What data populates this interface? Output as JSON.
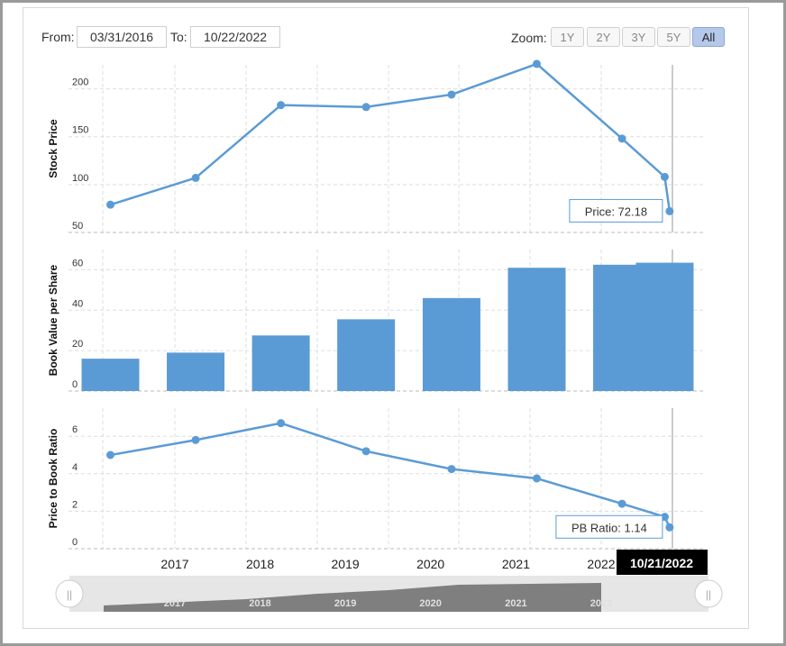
{
  "controls": {
    "from_label": "From:",
    "from_value": "03/31/2016",
    "to_label": "To:",
    "to_value": "10/22/2022",
    "zoom_label": "Zoom:",
    "zoom_options": [
      "1Y",
      "2Y",
      "3Y",
      "5Y",
      "All"
    ],
    "zoom_selected": "All"
  },
  "colors": {
    "series": "#5b9bd5",
    "grid": "#dddddd",
    "navigator_fill": "#7f7f7f",
    "navigator_bg": "#e6e6e6",
    "active_zoom": "#b5c8ea"
  },
  "chart_data": [
    {
      "type": "line",
      "ylabel": "Stock Price",
      "ylim": [
        50,
        225
      ],
      "yticks": [
        50,
        100,
        150,
        200
      ],
      "x": [
        "2016-03-31",
        "2017-03-31",
        "2018-03-31",
        "2019-03-31",
        "2020-03-31",
        "2021-03-31",
        "2022-03-31",
        "2022-09-30",
        "2022-10-21"
      ],
      "values": [
        79,
        107,
        183,
        181,
        194,
        226,
        148,
        108,
        72.18
      ],
      "tooltip": "Price: 72.18"
    },
    {
      "type": "bar",
      "ylabel": "Book Value per Share",
      "ylim": [
        0,
        70
      ],
      "yticks": [
        0,
        20,
        40,
        60
      ],
      "x": [
        "2016-03-31",
        "2017-03-31",
        "2018-03-31",
        "2019-03-31",
        "2020-03-31",
        "2021-03-31",
        "2022-03-31",
        "2022-09-30"
      ],
      "values": [
        16,
        19,
        27.5,
        35.5,
        46,
        61,
        62.5,
        63.5
      ]
    },
    {
      "type": "line",
      "ylabel": "Price to Book Ratio",
      "ylim": [
        0,
        7.5
      ],
      "yticks": [
        0,
        2,
        4,
        6
      ],
      "x": [
        "2016-03-31",
        "2017-03-31",
        "2018-03-31",
        "2019-03-31",
        "2020-03-31",
        "2021-03-31",
        "2022-03-31",
        "2022-09-30",
        "2022-10-21"
      ],
      "values": [
        5.0,
        5.8,
        6.7,
        5.2,
        4.25,
        3.75,
        2.4,
        1.7,
        1.14
      ],
      "tooltip": "PB Ratio: 1.14"
    }
  ],
  "x_axis": {
    "tick_labels": [
      "2017",
      "2018",
      "2019",
      "2020",
      "2021",
      "2022"
    ],
    "crosshair_label": "10/21/2022"
  },
  "navigator": {
    "tick_labels": [
      "2017",
      "2018",
      "2019",
      "2020",
      "2021",
      "2022"
    ],
    "handle_glyph": "||"
  }
}
